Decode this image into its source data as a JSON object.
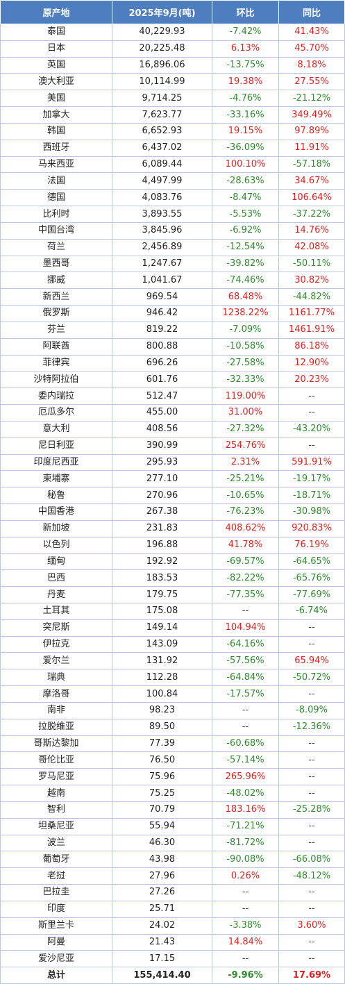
{
  "headers": [
    "原产地",
    "2025年9月(吨)",
    "环比",
    "同比"
  ],
  "rows": [
    [
      "泰国",
      "40,229.93",
      "-7.42%",
      "41.43%"
    ],
    [
      "日本",
      "20,225.48",
      "6.13%",
      "45.70%"
    ],
    [
      "英国",
      "16,896.06",
      "-13.75%",
      "8.18%"
    ],
    [
      "澳大利亚",
      "10,114.99",
      "19.38%",
      "27.55%"
    ],
    [
      "美国",
      "9,714.25",
      "-4.76%",
      "-21.12%"
    ],
    [
      "加拿大",
      "7,623.77",
      "-33.16%",
      "349.49%"
    ],
    [
      "韩国",
      "6,652.93",
      "19.15%",
      "97.89%"
    ],
    [
      "西班牙",
      "6,437.02",
      "-36.09%",
      "11.91%"
    ],
    [
      "马来西亚",
      "6,089.44",
      "100.10%",
      "-57.18%"
    ],
    [
      "法国",
      "4,497.99",
      "-28.63%",
      "34.67%"
    ],
    [
      "德国",
      "4,083.76",
      "-8.47%",
      "106.64%"
    ],
    [
      "比利时",
      "3,893.55",
      "-5.53%",
      "-37.22%"
    ],
    [
      "中国台湾",
      "3,845.96",
      "-6.92%",
      "14.76%"
    ],
    [
      "荷兰",
      "2,456.89",
      "-12.54%",
      "42.08%"
    ],
    [
      "墨西哥",
      "1,247.67",
      "-39.82%",
      "-50.11%"
    ],
    [
      "挪威",
      "1,041.67",
      "-74.46%",
      "30.82%"
    ],
    [
      "新西兰",
      "969.54",
      "68.48%",
      "-44.82%"
    ],
    [
      "俄罗斯",
      "946.42",
      "1238.22%",
      "1161.77%"
    ],
    [
      "芬兰",
      "819.22",
      "-7.09%",
      "1461.91%"
    ],
    [
      "阿联酋",
      "800.88",
      "-10.58%",
      "86.18%"
    ],
    [
      "菲律宾",
      "696.26",
      "-27.58%",
      "12.90%"
    ],
    [
      "沙特阿拉伯",
      "601.76",
      "-32.33%",
      "20.23%"
    ],
    [
      "委内瑞拉",
      "512.47",
      "119.00%",
      "--"
    ],
    [
      "厄瓜多尔",
      "455.00",
      "31.00%",
      "--"
    ],
    [
      "意大利",
      "408.56",
      "-27.32%",
      "-43.20%"
    ],
    [
      "尼日利亚",
      "390.99",
      "254.76%",
      "--"
    ],
    [
      "印度尼西亚",
      "295.93",
      "2.31%",
      "591.91%"
    ],
    [
      "柬埔寨",
      "277.10",
      "-25.21%",
      "-19.17%"
    ],
    [
      "秘鲁",
      "270.96",
      "-10.65%",
      "-18.71%"
    ],
    [
      "中国香港",
      "267.38",
      "-76.23%",
      "-30.98%"
    ],
    [
      "新加坡",
      "231.83",
      "408.62%",
      "920.83%"
    ],
    [
      "以色列",
      "196.88",
      "41.78%",
      "76.19%"
    ],
    [
      "缅甸",
      "192.92",
      "-69.57%",
      "-64.65%"
    ],
    [
      "巴西",
      "183.53",
      "-82.22%",
      "-65.76%"
    ],
    [
      "丹麦",
      "179.75",
      "-77.35%",
      "-77.69%"
    ],
    [
      "土耳其",
      "175.08",
      "--",
      "-6.74%"
    ],
    [
      "突尼斯",
      "149.14",
      "104.94%",
      "--"
    ],
    [
      "伊拉克",
      "143.09",
      "-64.16%",
      "--"
    ],
    [
      "爱尔兰",
      "131.92",
      "-57.56%",
      "65.94%"
    ],
    [
      "瑞典",
      "112.28",
      "-64.84%",
      "-50.72%"
    ],
    [
      "摩洛哥",
      "100.84",
      "-17.57%",
      "--"
    ],
    [
      "南非",
      "98.23",
      "--",
      "-8.09%"
    ],
    [
      "拉脱维亚",
      "89.50",
      "--",
      "-12.36%"
    ],
    [
      "哥斯达黎加",
      "77.39",
      "-60.68%",
      "--"
    ],
    [
      "哥伦比亚",
      "76.50",
      "-57.14%",
      "--"
    ],
    [
      "罗马尼亚",
      "75.96",
      "265.96%",
      "--"
    ],
    [
      "越南",
      "75.25",
      "-48.02%",
      "--"
    ],
    [
      "智利",
      "70.79",
      "183.16%",
      "-25.28%"
    ],
    [
      "坦桑尼亚",
      "55.94",
      "-71.21%",
      "--"
    ],
    [
      "波兰",
      "46.30",
      "-81.72%",
      "--"
    ],
    [
      "葡萄牙",
      "43.98",
      "-90.08%",
      "-66.08%"
    ],
    [
      "老挝",
      "27.96",
      "0.26%",
      "-48.12%"
    ],
    [
      "巴拉圭",
      "27.26",
      "--",
      "--"
    ],
    [
      "印度",
      "25.71",
      "--",
      "--"
    ],
    [
      "斯里兰卡",
      "24.02",
      "-3.38%",
      "3.60%"
    ],
    [
      "阿曼",
      "21.43",
      "14.84%",
      "--"
    ],
    [
      "爱沙尼亚",
      "17.15",
      "--",
      "--"
    ]
  ],
  "total": [
    "总计",
    "155,414.40",
    "-9.96%",
    "17.69%"
  ],
  "colors": {
    "header_bg": "#4f7ec0",
    "positive": "#e02020",
    "negative": "#2e8b2e",
    "border": "#b9c7e0"
  }
}
